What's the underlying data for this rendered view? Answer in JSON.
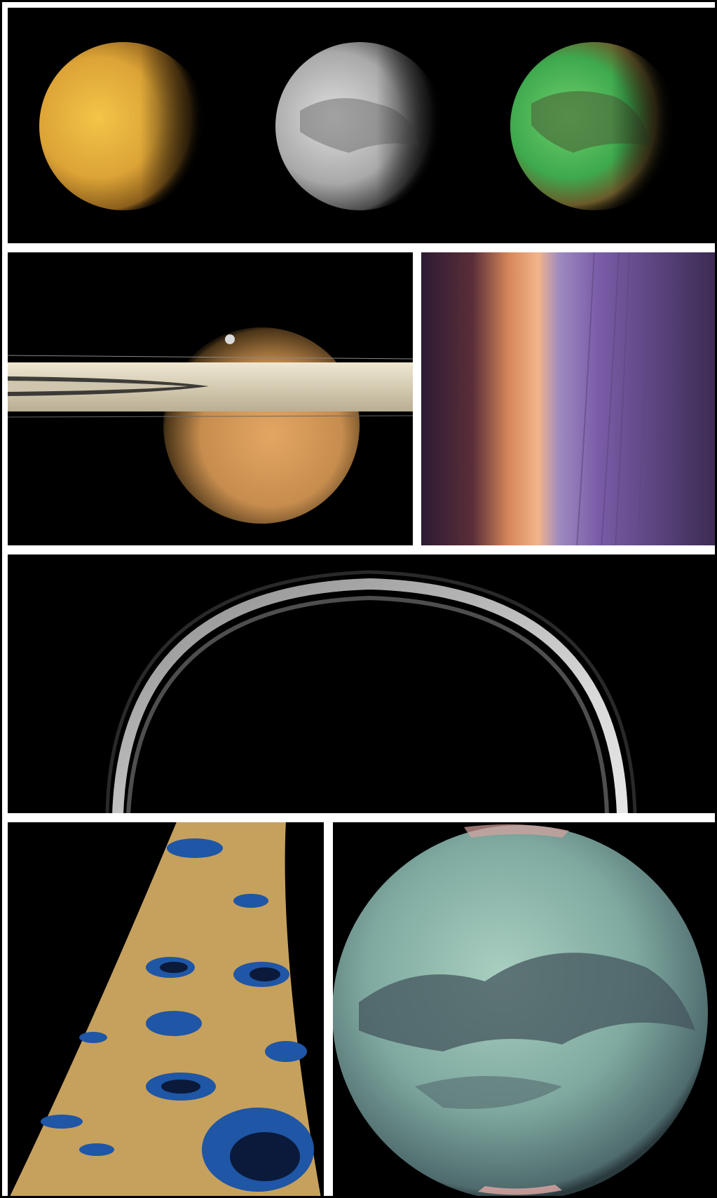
{
  "collage": {
    "panels": [
      {
        "id": "titan-three-views",
        "content": "three-discs-natural-grey-falsecolor"
      },
      {
        "id": "titan-behind-saturn-rings",
        "content": "rings-with-small-moon"
      },
      {
        "id": "titan-atmosphere-limb",
        "content": "haze-layers-limb"
      },
      {
        "id": "titan-night-side-ring",
        "content": "backlit-atmosphere-arc"
      },
      {
        "id": "titan-radar-lakes-strip",
        "content": "radar-swath-lakes"
      },
      {
        "id": "titan-infrared-globe",
        "content": "mosaic-infrared-globe"
      }
    ],
    "colors": {
      "background": "#000000",
      "border": "#ffffff",
      "titan_orange": "#e0a23a",
      "lake_blue": "#1f56a6",
      "terrain_tan": "#c6a15d",
      "globe_teal": "#7fa9a0",
      "limb_violet": "#7a5ca8"
    }
  }
}
